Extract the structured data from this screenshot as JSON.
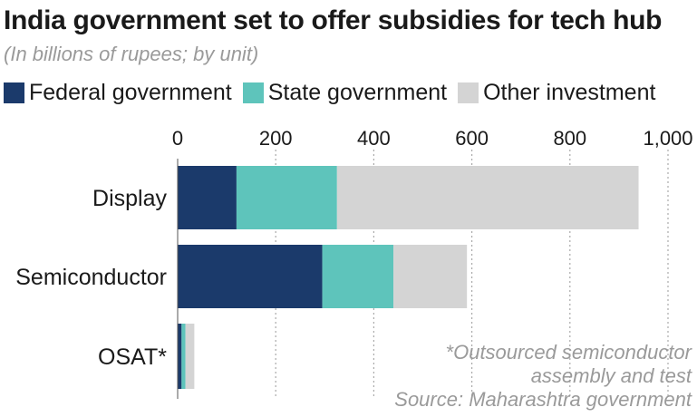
{
  "header": {
    "title": "India government set to offer subsidies for tech hub",
    "subtitle": "(In billions of rupees; by unit)"
  },
  "colors": {
    "federal": "#1b3a6b",
    "state": "#5ec4bb",
    "other": "#d4d4d4",
    "grid": "#aaaaaa"
  },
  "chart_data": {
    "type": "bar",
    "orientation": "horizontal",
    "stacked": true,
    "categories": [
      "Display",
      "Semiconductor",
      "OSAT*"
    ],
    "series": [
      {
        "name": "Federal government",
        "values": [
          120,
          295,
          8
        ]
      },
      {
        "name": "State government",
        "values": [
          205,
          145,
          8
        ]
      },
      {
        "name": "Other investment",
        "values": [
          615,
          150,
          18
        ]
      }
    ],
    "xlim": [
      0,
      1000
    ],
    "ticks": [
      "0",
      "200",
      "400",
      "600",
      "800",
      "1,000"
    ],
    "tick_values": [
      0,
      200,
      400,
      600,
      800,
      1000
    ],
    "grid": true,
    "legend_position": "top-left"
  },
  "footer": {
    "note_line1": "*Outsourced semiconductor",
    "note_line2": "assembly and test",
    "source": "Source: Maharashtra government"
  }
}
